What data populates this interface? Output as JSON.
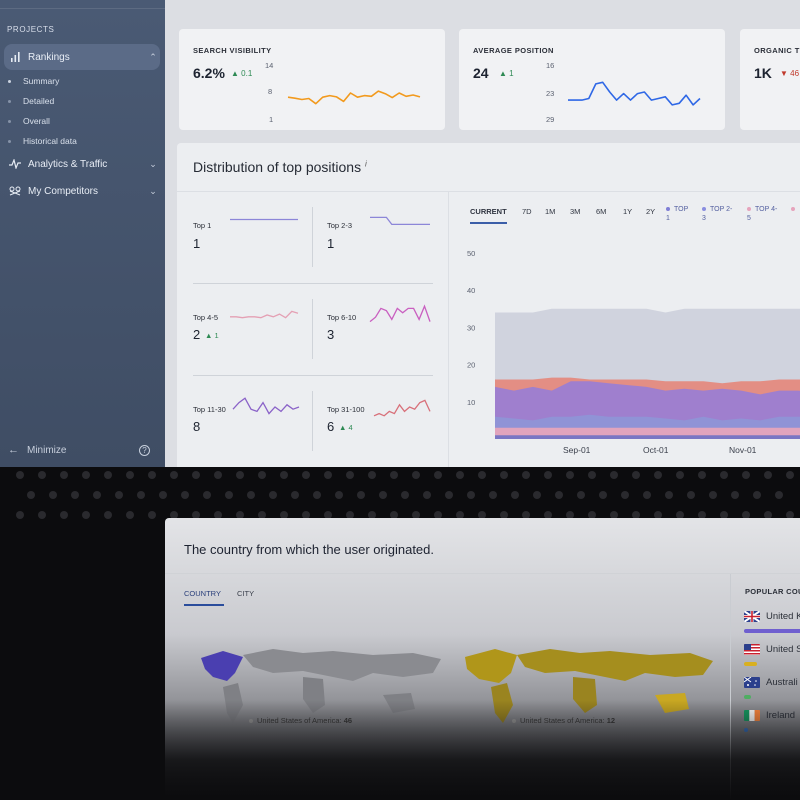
{
  "sidebar": {
    "section_label": "PROJECTS",
    "items": [
      {
        "label": "Rankings",
        "icon": "bar-chart-icon",
        "expanded": true
      },
      {
        "label": "Analytics & Traffic",
        "icon": "pulse-icon"
      },
      {
        "label": "My Competitors",
        "icon": "competitors-icon"
      }
    ],
    "rankings_subitems": [
      "Summary",
      "Detailed",
      "Overall",
      "Historical data"
    ],
    "minimize_label": "Minimize",
    "help_icon": "?"
  },
  "metrics": [
    {
      "title": "SEARCH VISIBILITY",
      "value": "6.2%",
      "delta": "0.1",
      "delta_dir": "up",
      "axis": [
        "14",
        "8",
        "1"
      ],
      "color": "#f29a1d",
      "spark": [
        6.5,
        6.2,
        5.8,
        6.1,
        4.5,
        6.5,
        7.0,
        6.6,
        5.2,
        7.8,
        6.5,
        7.0,
        6.8,
        8.4,
        7.6,
        6.4,
        7.8,
        6.8,
        7.2,
        6.6
      ]
    },
    {
      "title": "AVERAGE POSITION",
      "value": "24",
      "delta": "1",
      "delta_dir": "up",
      "axis": [
        "16",
        "23",
        "29"
      ],
      "color": "#2f68e6",
      "spark": [
        25,
        25,
        25,
        24.5,
        20,
        19.5,
        22.5,
        25,
        23,
        25,
        23,
        22.5,
        25,
        24.5,
        24,
        26.5,
        26,
        23.5,
        26.5,
        24.5
      ]
    },
    {
      "title": "ORGANIC TR",
      "value": "1K",
      "delta": "46",
      "delta_dir": "down"
    }
  ],
  "distribution": {
    "title": "Distribution of top positions",
    "info_mark": "i",
    "groups": [
      {
        "label": "Top 1",
        "value": "1",
        "delta": "",
        "color": "#8c86d8"
      },
      {
        "label": "Top 2-3",
        "value": "1",
        "delta": "",
        "color": "#8c86d8"
      },
      {
        "label": "Top 4-5",
        "value": "2",
        "delta": "1",
        "color": "#e4a0b4"
      },
      {
        "label": "Top 6-10",
        "value": "3",
        "delta": "",
        "color": "#c95fc0"
      },
      {
        "label": "Top 11-30",
        "value": "8",
        "delta": "",
        "color": "#8a62c8"
      },
      {
        "label": "Top 31-100",
        "value": "6",
        "delta": "4",
        "color": "#d8707a"
      }
    ],
    "tabs": [
      "CURRENT",
      "7D",
      "1M",
      "3M",
      "6M",
      "1Y",
      "2Y"
    ],
    "legend": [
      {
        "label": "TOP\n1",
        "color": "#7f7ed6"
      },
      {
        "label": "TOP 2-\n3",
        "color": "#8a8ee0"
      },
      {
        "label": "TOP 4-\n5",
        "color": "#e6a4bc"
      }
    ]
  },
  "chart_data": {
    "type": "area",
    "x_ticks": [
      "Sep-01",
      "Oct-01",
      "Nov-01"
    ],
    "yticks": [
      "50",
      "40",
      "30",
      "20",
      "10"
    ],
    "ylim": [
      0,
      50
    ],
    "series": [
      {
        "color": "#cfd1dc",
        "values": [
          34,
          34,
          34,
          35,
          35,
          35,
          35,
          35,
          35,
          34,
          35,
          35,
          35,
          35,
          35,
          35,
          35,
          35
        ]
      },
      {
        "color": "#e48a7e",
        "values": [
          16,
          16,
          16,
          16.5,
          16.5,
          16,
          16,
          16,
          16,
          15.5,
          15.5,
          15.5,
          15,
          15.5,
          15.5,
          16,
          16,
          16
        ]
      },
      {
        "color": "#9b7ed2",
        "values": [
          14,
          13,
          14,
          13,
          15.5,
          15.5,
          15,
          14.5,
          14,
          13,
          13.5,
          13,
          13.5,
          13,
          12,
          13,
          13,
          12.5
        ]
      },
      {
        "color": "#8f95d6",
        "values": [
          6,
          5.5,
          5,
          6,
          6,
          6.5,
          6,
          6,
          6,
          5.5,
          5,
          6,
          5,
          5.5,
          5,
          6,
          6,
          6
        ]
      },
      {
        "color": "#e6a4bc",
        "values": [
          3,
          3,
          3,
          3,
          3,
          3,
          3,
          3,
          3,
          3,
          3,
          3,
          3,
          3,
          3,
          3,
          3,
          3
        ]
      },
      {
        "color": "#7474c4",
        "values": [
          1,
          1,
          1,
          1,
          1,
          1,
          1,
          1,
          1,
          1,
          1,
          1,
          1,
          1,
          1,
          1,
          1,
          1
        ]
      }
    ]
  },
  "geo": {
    "title": "The country from which the user originated.",
    "tabs": [
      "COUNTRY",
      "CITY"
    ],
    "popular_title": "POPULAR COU",
    "countries": [
      {
        "name": "United K",
        "bar": 1.0,
        "bar_color": "#6f5fcf"
      },
      {
        "name": "United S",
        "bar": 0.22,
        "bar_color": "#d9b020"
      },
      {
        "name": "Australi",
        "bar": 0.12,
        "bar_color": "#4fae62"
      },
      {
        "name": "Ireland",
        "bar": 0.06,
        "bar_color": "#3a7ad0"
      }
    ],
    "tooltip_left": {
      "label": "United States of America:",
      "value": "46"
    },
    "tooltip_right": {
      "label": "United States of America:",
      "value": "12"
    }
  }
}
